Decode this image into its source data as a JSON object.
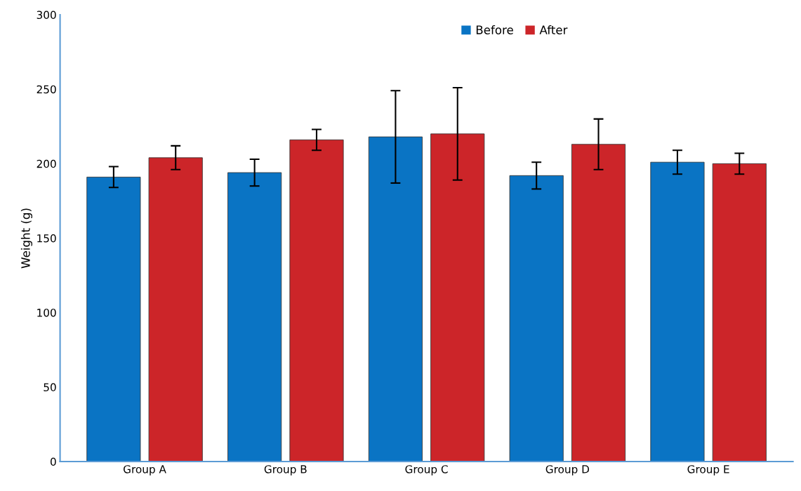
{
  "chart_data": {
    "type": "bar",
    "ylabel": "Weight (g)",
    "categories": [
      "Group A",
      "Group B",
      "Group C",
      "Group D",
      "Group E"
    ],
    "series": [
      {
        "name": "Before",
        "color": "#0a74c4",
        "values": [
          191,
          194,
          218,
          192,
          201
        ],
        "errors": [
          7,
          9,
          31,
          9,
          8
        ]
      },
      {
        "name": "After",
        "color": "#cc2529",
        "values": [
          204,
          216,
          220,
          213,
          200
        ],
        "errors": [
          8,
          7,
          31,
          17,
          7
        ]
      }
    ],
    "ylim": [
      0,
      300
    ],
    "yticks": [
      0,
      50,
      100,
      150,
      200,
      250,
      300
    ],
    "grid": false,
    "legend": "top"
  }
}
